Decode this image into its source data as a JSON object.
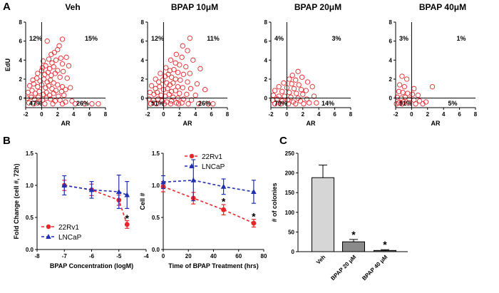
{
  "panel_labels": [
    "A",
    "B",
    "C"
  ],
  "colors": {
    "scatter": "#e8262a",
    "line_22rv1": "#e8262a",
    "line_lncap": "#1f2fb3",
    "bar_veh": "#d6d6d6",
    "bar_20": "#8a8a8a",
    "bar_40": "#6e6e6e",
    "axis": "#000000"
  },
  "chart_data": [
    {
      "type": "scatter",
      "panel": "A",
      "title": "Veh",
      "xlabel": "AR",
      "ylabel": "EdU",
      "xlim": [
        -2,
        8
      ],
      "ylim": [
        -1,
        8
      ],
      "xticks": [
        "-2",
        "0",
        "2",
        "4",
        "6",
        "8"
      ],
      "yticks": [
        "0",
        "2",
        "4",
        "6",
        "8"
      ],
      "quadrants": {
        "upper_left": "12%",
        "upper_right": "15%",
        "lower_left": "47%",
        "lower_right": "26%"
      },
      "gate": {
        "x": 0,
        "y": 0
      },
      "points": [
        [
          0.7,
          6.0
        ],
        [
          2.6,
          6.2
        ],
        [
          2.0,
          5.1
        ],
        [
          2.2,
          5.5
        ],
        [
          1.2,
          4.6
        ],
        [
          1.6,
          4.8
        ],
        [
          2.4,
          4.2
        ],
        [
          3.1,
          4.3
        ],
        [
          0.2,
          3.9
        ],
        [
          0.9,
          4.1
        ],
        [
          1.3,
          3.7
        ],
        [
          1.8,
          4.0
        ],
        [
          2.6,
          3.6
        ],
        [
          3.4,
          3.4
        ],
        [
          0.1,
          3.2
        ],
        [
          0.5,
          3.4
        ],
        [
          1.0,
          3.1
        ],
        [
          1.5,
          3.3
        ],
        [
          2.0,
          2.9
        ],
        [
          2.7,
          2.8
        ],
        [
          -0.5,
          2.6
        ],
        [
          0.0,
          2.9
        ],
        [
          0.4,
          2.5
        ],
        [
          0.8,
          2.7
        ],
        [
          1.2,
          2.4
        ],
        [
          1.7,
          2.6
        ],
        [
          2.3,
          2.2
        ],
        [
          3.2,
          2.1
        ],
        [
          -1.1,
          1.9
        ],
        [
          -0.6,
          2.1
        ],
        [
          -0.2,
          1.8
        ],
        [
          0.3,
          2.0
        ],
        [
          0.7,
          1.7
        ],
        [
          1.1,
          1.9
        ],
        [
          1.5,
          1.6
        ],
        [
          2.0,
          1.4
        ],
        [
          2.6,
          1.2
        ],
        [
          3.6,
          1.1
        ],
        [
          -1.5,
          1.3
        ],
        [
          -1.0,
          1.5
        ],
        [
          -0.5,
          1.2
        ],
        [
          0.0,
          1.4
        ],
        [
          0.5,
          1.1
        ],
        [
          0.9,
          1.3
        ],
        [
          1.3,
          1.0
        ],
        [
          1.8,
          0.8
        ],
        [
          2.5,
          0.7
        ],
        [
          3.0,
          0.9
        ],
        [
          -1.7,
          0.6
        ],
        [
          -1.2,
          0.8
        ],
        [
          -0.8,
          0.5
        ],
        [
          -0.3,
          0.7
        ],
        [
          0.2,
          0.4
        ],
        [
          0.6,
          0.6
        ],
        [
          1.0,
          0.3
        ],
        [
          1.5,
          0.5
        ],
        [
          2.1,
          0.2
        ],
        [
          2.8,
          0.3
        ],
        [
          -1.8,
          0.0
        ],
        [
          -1.3,
          0.1
        ],
        [
          -0.9,
          -0.1
        ],
        [
          -0.4,
          0.1
        ],
        [
          0.1,
          -0.2
        ],
        [
          0.6,
          0.0
        ],
        [
          1.1,
          -0.1
        ],
        [
          1.7,
          -0.3
        ],
        [
          2.3,
          -0.2
        ],
        [
          3.0,
          -0.4
        ],
        [
          3.8,
          -0.3
        ],
        [
          -1.6,
          -0.5
        ],
        [
          -1.0,
          -0.6
        ],
        [
          -0.5,
          -0.5
        ],
        [
          0.4,
          -0.6
        ],
        [
          1.4,
          -0.6
        ],
        [
          2.6,
          -0.6
        ],
        [
          4.2,
          -0.6
        ],
        [
          5.4,
          -0.6
        ],
        [
          6.3,
          -0.6
        ],
        [
          7.1,
          -0.6
        ]
      ]
    },
    {
      "type": "scatter",
      "panel": "A",
      "title": "BPAP 10μM",
      "xlabel": "AR",
      "ylabel": "",
      "xlim": [
        -2,
        8
      ],
      "ylim": [
        -1,
        8
      ],
      "xticks": [
        "-2",
        "0",
        "2",
        "4",
        "6",
        "8"
      ],
      "yticks": [
        "0",
        "2",
        "4",
        "6",
        "8"
      ],
      "quadrants": {
        "upper_left": "12%",
        "upper_right": "11%",
        "lower_left": "51%",
        "lower_right": "26%"
      },
      "gate": {
        "x": 0,
        "y": 0
      },
      "points": [
        [
          3.3,
          6.3
        ],
        [
          2.4,
          5.5
        ],
        [
          3.0,
          5.0
        ],
        [
          1.6,
          4.6
        ],
        [
          2.3,
          4.3
        ],
        [
          3.7,
          4.0
        ],
        [
          0.9,
          4.0
        ],
        [
          1.5,
          3.7
        ],
        [
          2.0,
          3.5
        ],
        [
          2.8,
          3.3
        ],
        [
          4.6,
          3.1
        ],
        [
          0.3,
          3.2
        ],
        [
          0.8,
          2.9
        ],
        [
          1.3,
          3.0
        ],
        [
          1.8,
          2.7
        ],
        [
          2.5,
          2.5
        ],
        [
          3.3,
          2.6
        ],
        [
          -0.4,
          2.6
        ],
        [
          0.2,
          2.3
        ],
        [
          0.6,
          2.5
        ],
        [
          1.0,
          2.2
        ],
        [
          1.5,
          2.0
        ],
        [
          2.1,
          1.9
        ],
        [
          3.0,
          1.7
        ],
        [
          4.2,
          1.5
        ],
        [
          -1.0,
          2.0
        ],
        [
          -0.6,
          1.7
        ],
        [
          -0.1,
          1.9
        ],
        [
          0.4,
          1.6
        ],
        [
          0.8,
          1.4
        ],
        [
          1.2,
          1.6
        ],
        [
          1.8,
          1.2
        ],
        [
          2.4,
          1.1
        ],
        [
          3.4,
          1.0
        ],
        [
          5.2,
          0.9
        ],
        [
          -1.5,
          1.3
        ],
        [
          -1.0,
          1.0
        ],
        [
          -0.5,
          1.2
        ],
        [
          0.0,
          0.9
        ],
        [
          0.5,
          1.0
        ],
        [
          1.0,
          0.7
        ],
        [
          1.5,
          0.8
        ],
        [
          2.0,
          0.5
        ],
        [
          2.9,
          0.4
        ],
        [
          4.0,
          0.3
        ],
        [
          -1.7,
          0.6
        ],
        [
          -1.2,
          0.4
        ],
        [
          -0.8,
          0.6
        ],
        [
          -0.3,
          0.3
        ],
        [
          0.2,
          0.2
        ],
        [
          0.7,
          0.4
        ],
        [
          1.2,
          0.1
        ],
        [
          1.8,
          0.0
        ],
        [
          2.5,
          -0.1
        ],
        [
          3.5,
          -0.2
        ],
        [
          -1.8,
          -0.1
        ],
        [
          -1.3,
          -0.2
        ],
        [
          -0.7,
          -0.1
        ],
        [
          -0.2,
          -0.3
        ],
        [
          0.4,
          -0.4
        ],
        [
          1.0,
          -0.3
        ],
        [
          1.6,
          -0.5
        ],
        [
          2.3,
          -0.5
        ],
        [
          3.1,
          -0.6
        ],
        [
          4.4,
          -0.6
        ],
        [
          5.6,
          -0.6
        ],
        [
          6.2,
          -0.6
        ],
        [
          -1.6,
          -0.6
        ],
        [
          -0.9,
          -0.6
        ],
        [
          0.1,
          -0.6
        ],
        [
          0.9,
          -0.6
        ],
        [
          1.9,
          -0.6
        ]
      ]
    },
    {
      "type": "scatter",
      "panel": "A",
      "title": "BPAP 20μM",
      "xlabel": "AR",
      "ylabel": "",
      "xlim": [
        -2,
        8
      ],
      "ylim": [
        -1,
        8
      ],
      "xticks": [
        "-2",
        "0",
        "2",
        "4",
        "6",
        "8"
      ],
      "yticks": [
        "0",
        "2",
        "4",
        "6",
        "8"
      ],
      "quadrants": {
        "upper_left": "4%",
        "upper_right": "3%",
        "lower_left": "79%",
        "lower_right": "14%"
      },
      "gate": {
        "x": 0,
        "y": 0
      },
      "points": [
        [
          1.4,
          2.8
        ],
        [
          0.7,
          2.4
        ],
        [
          1.9,
          2.2
        ],
        [
          0.3,
          2.0
        ],
        [
          1.1,
          1.9
        ],
        [
          2.6,
          1.7
        ],
        [
          -0.4,
          1.6
        ],
        [
          0.6,
          1.5
        ],
        [
          1.5,
          1.4
        ],
        [
          3.2,
          1.2
        ],
        [
          -1.0,
          1.2
        ],
        [
          0.0,
          1.1
        ],
        [
          0.9,
          1.0
        ],
        [
          1.8,
          0.9
        ],
        [
          2.4,
          0.8
        ],
        [
          -1.5,
          0.8
        ],
        [
          -0.6,
          0.7
        ],
        [
          0.3,
          0.6
        ],
        [
          1.2,
          0.5
        ],
        [
          2.0,
          0.4
        ],
        [
          3.4,
          0.2
        ],
        [
          -1.7,
          0.3
        ],
        [
          -1.0,
          0.2
        ],
        [
          -0.3,
          0.2
        ],
        [
          0.5,
          0.1
        ],
        [
          1.4,
          0.0
        ],
        [
          2.5,
          -0.1
        ],
        [
          -1.8,
          -0.2
        ],
        [
          -1.2,
          -0.1
        ],
        [
          -0.6,
          -0.3
        ],
        [
          0.1,
          -0.2
        ],
        [
          0.8,
          -0.4
        ],
        [
          1.7,
          -0.3
        ],
        [
          2.8,
          -0.5
        ],
        [
          3.7,
          -0.5
        ],
        [
          -1.5,
          -0.6
        ],
        [
          -0.8,
          -0.6
        ],
        [
          0.2,
          -0.6
        ],
        [
          1.1,
          -0.6
        ],
        [
          2.1,
          -0.6
        ]
      ]
    },
    {
      "type": "scatter",
      "panel": "A",
      "title": "BPAP 40μM",
      "xlabel": "AR",
      "ylabel": "",
      "xlim": [
        -2,
        8
      ],
      "ylim": [
        -1,
        8
      ],
      "xticks": [
        "-2",
        "0",
        "2",
        "4",
        "6",
        "8"
      ],
      "yticks": [
        "0",
        "2",
        "4",
        "6",
        "8"
      ],
      "quadrants": {
        "upper_left": "3%",
        "upper_right": "1%",
        "lower_left": "91%",
        "lower_right": "5%"
      },
      "gate": {
        "x": 0,
        "y": 0
      },
      "points": [
        [
          -1.2,
          2.3
        ],
        [
          -0.6,
          2.0
        ],
        [
          2.6,
          1.2
        ],
        [
          -1.5,
          1.4
        ],
        [
          -0.9,
          1.2
        ],
        [
          0.3,
          1.0
        ],
        [
          -1.6,
          0.7
        ],
        [
          -1.1,
          0.6
        ],
        [
          -0.5,
          0.5
        ],
        [
          0.1,
          0.4
        ],
        [
          0.8,
          0.3
        ],
        [
          -1.8,
          0.1
        ],
        [
          -1.3,
          0.0
        ],
        [
          -0.8,
          0.1
        ],
        [
          -0.3,
          -0.1
        ],
        [
          0.3,
          -0.2
        ],
        [
          1.0,
          -0.3
        ],
        [
          1.8,
          -0.4
        ],
        [
          -1.6,
          -0.5
        ],
        [
          -1.0,
          -0.4
        ],
        [
          -0.4,
          -0.5
        ],
        [
          0.5,
          -0.6
        ],
        [
          1.4,
          -0.6
        ],
        [
          -1.9,
          -0.6
        ],
        [
          -1.2,
          -0.6
        ]
      ]
    },
    {
      "type": "line",
      "panel": "B",
      "xlabel": "BPAP Concentration (logM)",
      "ylabel": "Fold Change (cell #, 72h)",
      "xlim": [
        -8,
        -4
      ],
      "ylim": [
        0.0,
        1.5
      ],
      "xticks": [
        "-8",
        "-7",
        "-6",
        "-5",
        "-4"
      ],
      "yticks": [
        "0.0",
        "0.5",
        "1.0",
        "1.5"
      ],
      "x": [
        -7,
        -6,
        -5,
        -4.7
      ],
      "series": [
        {
          "name": "22Rv1",
          "values": [
            1.0,
            0.93,
            0.77,
            0.39
          ],
          "err": [
            0.08,
            0.09,
            0.08,
            0.06
          ]
        },
        {
          "name": "LNCaP",
          "values": [
            1.0,
            0.93,
            0.9,
            0.85
          ],
          "err": [
            0.15,
            0.13,
            0.26,
            0.21
          ]
        }
      ],
      "annotations": [
        {
          "text": "*",
          "x": -4.7,
          "y": 0.5
        }
      ],
      "legend": "bottom-left"
    },
    {
      "type": "line",
      "panel": "B",
      "xlabel": "Time of BPAP Treatment (hrs)",
      "ylabel": "Cell #",
      "xlim": [
        0,
        80
      ],
      "ylim": [
        0.0,
        1.5
      ],
      "xticks": [
        "0",
        "20",
        "40",
        "60",
        "80"
      ],
      "yticks": [
        "0.0",
        "0.5",
        "1.0",
        "1.5"
      ],
      "x": [
        0,
        24,
        48,
        72
      ],
      "series": [
        {
          "name": "22Rv1",
          "values": [
            0.98,
            0.8,
            0.62,
            0.41
          ],
          "err": [
            0.08,
            0.09,
            0.08,
            0.06
          ]
        },
        {
          "name": "LNCaP",
          "values": [
            1.05,
            1.08,
            0.98,
            0.9
          ],
          "err": [
            0.1,
            0.32,
            0.12,
            0.18
          ]
        }
      ],
      "annotations": [
        {
          "text": "*",
          "x": 48,
          "y": 0.76
        },
        {
          "text": "*",
          "x": 72,
          "y": 0.53
        }
      ],
      "legend": "top-right"
    },
    {
      "type": "bar",
      "panel": "C",
      "xlabel": "",
      "ylabel": "# of colonies",
      "ylim": [
        0,
        250
      ],
      "yticks": [
        "0",
        "50",
        "100",
        "150",
        "200",
        "250"
      ],
      "categories": [
        "Veh",
        "BPAP 20 μM",
        "BPAP 40 μM"
      ],
      "values": [
        188,
        25,
        3
      ],
      "err": [
        32,
        6,
        2
      ],
      "annotations": [
        {
          "text": "*",
          "index": 1
        },
        {
          "text": "*",
          "index": 2
        }
      ]
    }
  ]
}
